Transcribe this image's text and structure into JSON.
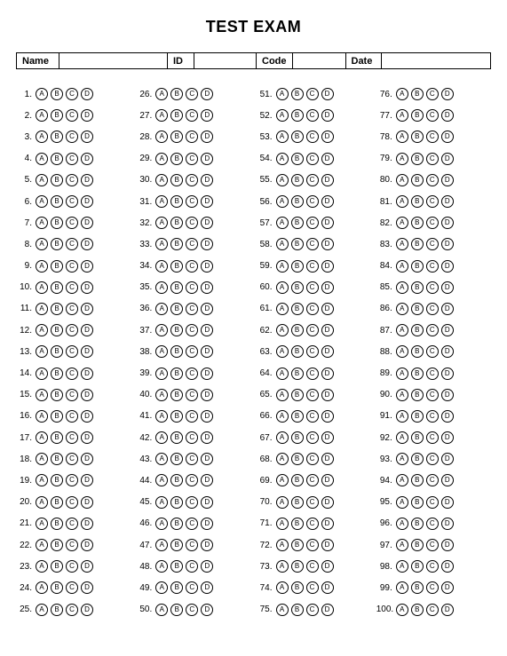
{
  "title": "TEST EXAM",
  "header_fields": [
    {
      "label": "Name",
      "value": "",
      "label_width": "48px",
      "value_width": "122px"
    },
    {
      "label": "ID",
      "value": "",
      "label_width": "30px",
      "value_width": "70px"
    },
    {
      "label": "Code",
      "value": "",
      "label_width": "40px",
      "value_width": "60px"
    },
    {
      "label": "Date",
      "value": "",
      "label_width": "40px",
      "value_width": "auto"
    }
  ],
  "choices": [
    "A",
    "B",
    "C",
    "D"
  ],
  "columns": 4,
  "rows_per_column": 25,
  "total_questions": 100,
  "bubble_border_color": "#000000",
  "bubble_bg_color": "#ffffff",
  "text_color": "#000000",
  "background_color": "#ffffff"
}
